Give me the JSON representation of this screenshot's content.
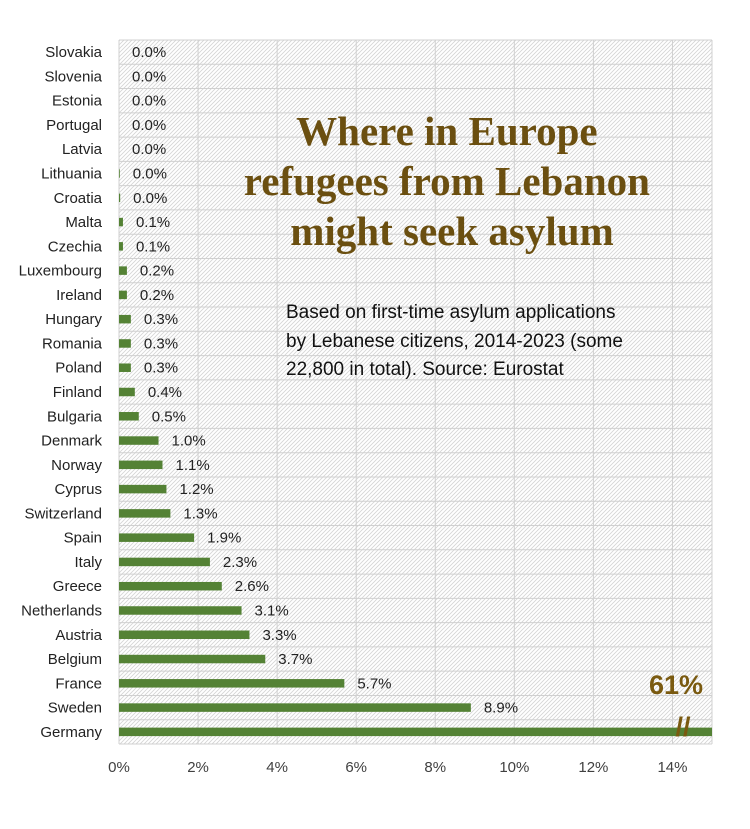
{
  "chart_data": {
    "type": "bar",
    "orientation": "horizontal",
    "title": [
      "Where in Europe",
      "refugees from Lebanon",
      "might seek asylum"
    ],
    "subtitle": [
      "Based on first-time asylum applications",
      "by Lebanese citizens, 2014-2023 (some",
      "22,800 in total). Source: Eurostat"
    ],
    "categories": [
      "Slovakia",
      "Slovenia",
      "Estonia",
      "Portugal",
      "Latvia",
      "Lithuania",
      "Croatia",
      "Malta",
      "Czechia",
      "Luxembourg",
      "Ireland",
      "Hungary",
      "Romania",
      "Poland",
      "Finland",
      "Bulgaria",
      "Denmark",
      "Norway",
      "Cyprus",
      "Switzerland",
      "Spain",
      "Italy",
      "Greece",
      "Netherlands",
      "Austria",
      "Belgium",
      "France",
      "Sweden",
      "Germany"
    ],
    "values": [
      0.0,
      0.0,
      0.0,
      0.0,
      0.0,
      0.02,
      0.03,
      0.1,
      0.1,
      0.2,
      0.2,
      0.3,
      0.3,
      0.3,
      0.4,
      0.5,
      1.0,
      1.1,
      1.2,
      1.3,
      1.9,
      2.3,
      2.6,
      3.1,
      3.3,
      3.7,
      5.7,
      8.9,
      61
    ],
    "value_labels": [
      "0.0%",
      "0.0%",
      "0.0%",
      "0.0%",
      "0.0%",
      "0.0%",
      "0.0%",
      "0.1%",
      "0.1%",
      "0.2%",
      "0.2%",
      "0.3%",
      "0.3%",
      "0.3%",
      "0.4%",
      "0.5%",
      "1.0%",
      "1.1%",
      "1.2%",
      "1.3%",
      "1.9%",
      "2.3%",
      "2.6%",
      "3.1%",
      "3.3%",
      "3.7%",
      "5.7%",
      "8.9%",
      "61%"
    ],
    "break_marker": "//",
    "xlim": [
      0,
      15
    ],
    "x_ticks": [
      0,
      2,
      4,
      6,
      8,
      10,
      12,
      14
    ],
    "x_tick_labels": [
      "0%",
      "2%",
      "4%",
      "6%",
      "8%",
      "10%",
      "12%",
      "14%"
    ],
    "bar_color": "#548235",
    "highlight_color": "#7a5a10",
    "grid": true,
    "background_pattern": "diagonal-hatch"
  }
}
